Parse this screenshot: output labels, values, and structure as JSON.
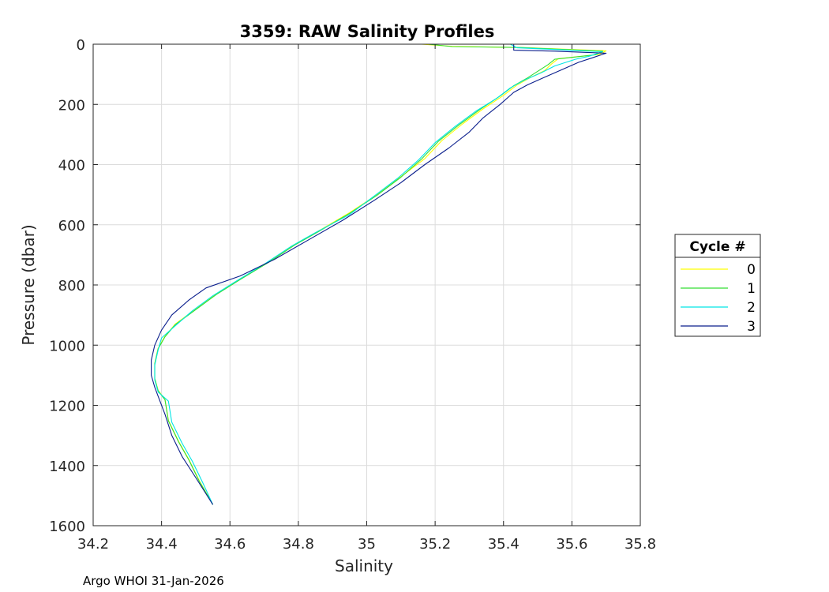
{
  "chart_data": {
    "type": "line",
    "title": "3359: RAW Salinity Profiles",
    "xlabel": "Salinity",
    "ylabel": "Pressure (dbar)",
    "xlim": [
      34.2,
      35.8
    ],
    "ylim": [
      0,
      1600
    ],
    "y_reversed": true,
    "grid": true,
    "x_ticks": [
      34.2,
      34.4,
      34.6,
      34.8,
      35,
      35.2,
      35.4,
      35.6,
      35.8
    ],
    "x_tick_labels": [
      "34.2",
      "34.4",
      "34.6",
      "34.8",
      "35",
      "35.2",
      "35.4",
      "35.6",
      "35.8"
    ],
    "y_ticks": [
      0,
      200,
      400,
      600,
      800,
      1000,
      1200,
      1400,
      1600
    ],
    "y_tick_labels": [
      "0",
      "200",
      "400",
      "600",
      "800",
      "1000",
      "1200",
      "1400",
      "1600"
    ],
    "legend": {
      "title": "Cycle #",
      "position": "outside-right"
    },
    "series": [
      {
        "name": "0",
        "color": "#ffff00",
        "points": [
          [
            35.16,
            0
          ],
          [
            35.25,
            7
          ],
          [
            35.45,
            11
          ],
          [
            35.7,
            22
          ],
          [
            35.68,
            34
          ],
          [
            35.56,
            48
          ],
          [
            35.54,
            66
          ],
          [
            35.52,
            88
          ],
          [
            35.48,
            110
          ],
          [
            35.44,
            135
          ],
          [
            35.4,
            170
          ],
          [
            35.34,
            215
          ],
          [
            35.28,
            265
          ],
          [
            35.22,
            320
          ],
          [
            35.17,
            380
          ],
          [
            35.1,
            440
          ],
          [
            35.03,
            500
          ],
          [
            34.95,
            560
          ],
          [
            34.86,
            620
          ],
          [
            34.79,
            665
          ],
          [
            34.71,
            725
          ],
          [
            34.63,
            780
          ],
          [
            34.56,
            830
          ],
          [
            34.5,
            880
          ],
          [
            34.44,
            930
          ],
          [
            34.41,
            970
          ],
          [
            34.39,
            1010
          ],
          [
            34.38,
            1060
          ],
          [
            34.38,
            1110
          ],
          [
            34.39,
            1150
          ],
          [
            34.41,
            1180
          ],
          [
            34.42,
            1250
          ],
          [
            34.45,
            1320
          ],
          [
            34.48,
            1380
          ],
          [
            34.51,
            1450
          ],
          [
            34.55,
            1530
          ]
        ]
      },
      {
        "name": "1",
        "color": "#33dd33",
        "points": [
          [
            35.18,
            0
          ],
          [
            35.25,
            8
          ],
          [
            35.45,
            11
          ],
          [
            35.69,
            23
          ],
          [
            35.67,
            35
          ],
          [
            35.55,
            50
          ],
          [
            35.53,
            68
          ],
          [
            35.5,
            90
          ],
          [
            35.47,
            112
          ],
          [
            35.43,
            138
          ],
          [
            35.39,
            172
          ],
          [
            35.33,
            218
          ],
          [
            35.27,
            268
          ],
          [
            35.21,
            322
          ],
          [
            35.16,
            382
          ],
          [
            35.1,
            442
          ],
          [
            35.03,
            502
          ],
          [
            34.95,
            562
          ],
          [
            34.86,
            622
          ],
          [
            34.79,
            667
          ],
          [
            34.71,
            727
          ],
          [
            34.63,
            782
          ],
          [
            34.56,
            832
          ],
          [
            34.5,
            882
          ],
          [
            34.44,
            932
          ],
          [
            34.41,
            972
          ],
          [
            34.39,
            1012
          ],
          [
            34.38,
            1062
          ],
          [
            34.38,
            1112
          ],
          [
            34.39,
            1152
          ],
          [
            34.41,
            1182
          ],
          [
            34.42,
            1252
          ],
          [
            34.45,
            1322
          ],
          [
            34.48,
            1382
          ],
          [
            34.51,
            1452
          ],
          [
            34.55,
            1530
          ]
        ]
      },
      {
        "name": "2",
        "color": "#00e5e5",
        "points": [
          [
            35.42,
            0
          ],
          [
            35.44,
            12
          ],
          [
            35.69,
            25
          ],
          [
            35.65,
            40
          ],
          [
            35.61,
            50
          ],
          [
            35.55,
            72
          ],
          [
            35.51,
            95
          ],
          [
            35.46,
            120
          ],
          [
            35.42,
            145
          ],
          [
            35.38,
            180
          ],
          [
            35.32,
            222
          ],
          [
            35.26,
            272
          ],
          [
            35.2,
            327
          ],
          [
            35.15,
            386
          ],
          [
            35.09,
            446
          ],
          [
            35.02,
            506
          ],
          [
            34.95,
            566
          ],
          [
            34.85,
            626
          ],
          [
            34.78,
            671
          ],
          [
            34.7,
            731
          ],
          [
            34.62,
            786
          ],
          [
            34.55,
            836
          ],
          [
            34.49,
            886
          ],
          [
            34.44,
            936
          ],
          [
            34.4,
            976
          ],
          [
            34.39,
            1016
          ],
          [
            34.38,
            1066
          ],
          [
            34.38,
            1116
          ],
          [
            34.39,
            1156
          ],
          [
            34.42,
            1186
          ],
          [
            34.43,
            1256
          ],
          [
            34.46,
            1326
          ],
          [
            34.49,
            1386
          ],
          [
            34.52,
            1456
          ],
          [
            34.55,
            1530
          ]
        ]
      },
      {
        "name": "3",
        "color": "#0a1e8c",
        "points": [
          [
            35.43,
            0
          ],
          [
            35.43,
            20
          ],
          [
            35.55,
            23
          ],
          [
            35.7,
            30
          ],
          [
            35.66,
            45
          ],
          [
            35.62,
            60
          ],
          [
            35.57,
            85
          ],
          [
            35.52,
            110
          ],
          [
            35.47,
            135
          ],
          [
            35.43,
            160
          ],
          [
            35.39,
            200
          ],
          [
            35.34,
            245
          ],
          [
            35.3,
            292
          ],
          [
            35.24,
            345
          ],
          [
            35.17,
            400
          ],
          [
            35.1,
            460
          ],
          [
            35.02,
            520
          ],
          [
            34.93,
            585
          ],
          [
            34.83,
            650
          ],
          [
            34.73,
            715
          ],
          [
            34.63,
            770
          ],
          [
            34.53,
            810
          ],
          [
            34.48,
            850
          ],
          [
            34.43,
            900
          ],
          [
            34.4,
            950
          ],
          [
            34.38,
            1000
          ],
          [
            34.37,
            1050
          ],
          [
            34.37,
            1100
          ],
          [
            34.38,
            1140
          ],
          [
            34.39,
            1170
          ],
          [
            34.41,
            1230
          ],
          [
            34.43,
            1300
          ],
          [
            34.46,
            1370
          ],
          [
            34.5,
            1440
          ],
          [
            34.55,
            1530
          ]
        ]
      }
    ]
  },
  "footer": {
    "text": "Argo WHOI 31-Jan-2026"
  }
}
